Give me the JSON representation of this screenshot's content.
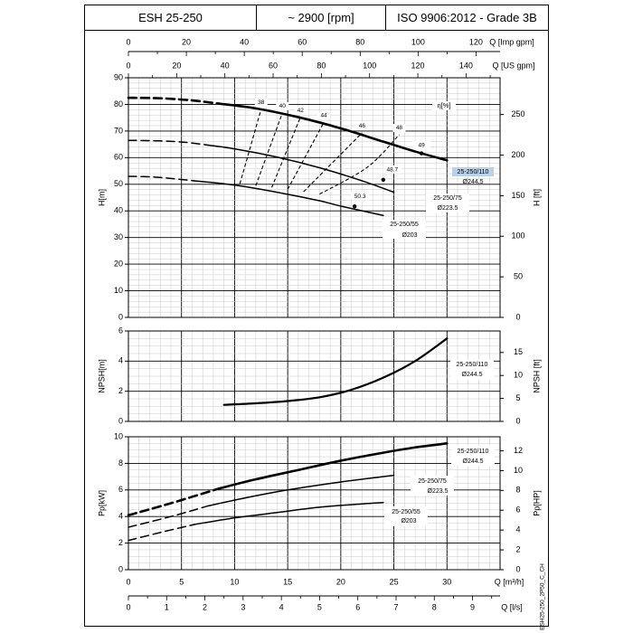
{
  "header": {
    "model": "ESH 25-250",
    "speed": "~ 2900 [rpm]",
    "standard": "ISO 9906:2012 - Grade 3B"
  },
  "footer_code": "ESH25-250_2P50_C_CH",
  "colors": {
    "line": "#000000",
    "grid": "#c8c8c8",
    "highlight": "#b7d2ea"
  },
  "chart_data": [
    {
      "type": "line",
      "panel": "head",
      "x_axis_main": {
        "label": "Q [m³/h]",
        "range": [
          0,
          35
        ]
      },
      "x_axis_top_imp": {
        "label": "Q [Imp gpm]",
        "range": [
          0,
          128.3
        ],
        "ticks": [
          0,
          20,
          40,
          60,
          80,
          100,
          120
        ],
        "tick_labels": [
          "0",
          "20",
          "40",
          "60",
          "80",
          "100",
          "120"
        ]
      },
      "x_axis_top_us": {
        "label": "Q [US gpm]",
        "range": [
          0,
          154.1
        ],
        "ticks": [
          0,
          20,
          40,
          60,
          80,
          100,
          120,
          140
        ],
        "tick_labels": [
          "0",
          "20",
          "40",
          "60",
          "80",
          "100",
          "120",
          "140"
        ]
      },
      "y_left": {
        "label": "H[m]",
        "range": [
          0,
          90
        ],
        "ticks": [
          0,
          10,
          20,
          30,
          40,
          50,
          60,
          70,
          80,
          90
        ],
        "tick_labels": [
          "0",
          "10",
          "20",
          "30",
          "40",
          "50",
          "60",
          "70",
          "80",
          "90"
        ]
      },
      "y_right": {
        "label": "H [ft]",
        "range": [
          0,
          295.3
        ],
        "ticks": [
          0,
          50,
          100,
          150,
          200,
          250
        ],
        "tick_labels": [
          "0",
          "50",
          "100",
          "150",
          "200",
          "250"
        ]
      },
      "series": [
        {
          "name": "25-250/110",
          "diameter": "Ø244.5",
          "highlight": true,
          "dashed": [
            [
              0,
              82.5
            ],
            [
              3,
              82.3
            ],
            [
              6,
              81.5
            ],
            [
              8.5,
              80.3
            ]
          ],
          "solid": [
            [
              8.5,
              80.3
            ],
            [
              12,
              78.5
            ],
            [
              16,
              75.2
            ],
            [
              20,
              71
            ],
            [
              24,
              66
            ],
            [
              27,
              62.3
            ],
            [
              30,
              59
            ]
          ]
        },
        {
          "name": "25-250/75",
          "diameter": "Ø223.5",
          "dashed": [
            [
              0,
              66.5
            ],
            [
              3,
              66.3
            ],
            [
              5.5,
              65.7
            ],
            [
              7.5,
              64.7
            ]
          ],
          "solid": [
            [
              7.5,
              64.7
            ],
            [
              10,
              63.3
            ],
            [
              14,
              60.2
            ],
            [
              18,
              56.2
            ],
            [
              22,
              51.3
            ],
            [
              25,
              47
            ]
          ]
        },
        {
          "name": "25-250/55",
          "diameter": "Ø203",
          "dashed": [
            [
              0,
              53
            ],
            [
              2.5,
              52.7
            ],
            [
              5,
              51.8
            ],
            [
              6.2,
              51.3
            ]
          ],
          "solid": [
            [
              6.2,
              51.3
            ],
            [
              10,
              49.7
            ],
            [
              14,
              47
            ],
            [
              18,
              43.8
            ],
            [
              20,
              41.8
            ],
            [
              24,
              38.3
            ]
          ]
        }
      ],
      "efficiency_label": "η[%]",
      "efficiency_curves": [
        {
          "value": "38",
          "points": [
            [
              10.5,
              50.2
            ],
            [
              12.5,
              78.2
            ]
          ]
        },
        {
          "value": "40",
          "points": [
            [
              12,
              49.5
            ],
            [
              14.5,
              76.8
            ]
          ]
        },
        {
          "value": "42",
          "points": [
            [
              13.5,
              48.8
            ],
            [
              16.2,
              75.2
            ]
          ]
        },
        {
          "value": "44",
          "points": [
            [
              15,
              48.1
            ],
            [
              18.4,
              73.2
            ]
          ]
        },
        {
          "value": "46",
          "points": [
            [
              16.5,
              47.2
            ],
            [
              22,
              69.3
            ]
          ]
        },
        {
          "value": "48",
          "points": [
            [
              18,
              46.3
            ],
            [
              22.5,
              56.4
            ],
            [
              25.5,
              68.6
            ]
          ]
        }
      ],
      "efficiency_points": [
        {
          "value": "49",
          "q": 27.6,
          "h": 61.6
        },
        {
          "value": "48.7",
          "q": 24,
          "h": 51.7
        },
        {
          "value": "50.3",
          "q": 21.3,
          "h": 41.7
        }
      ]
    },
    {
      "type": "line",
      "panel": "npsh",
      "y_left": {
        "label": "NPSH[m]",
        "range": [
          0,
          6
        ],
        "ticks": [
          0,
          2,
          4,
          6
        ],
        "tick_labels": [
          "0",
          "2",
          "4",
          "6"
        ]
      },
      "y_right": {
        "label": "NPSH [ft]",
        "range": [
          0,
          19.69
        ],
        "ticks": [
          0,
          5,
          10,
          15
        ],
        "tick_labels": [
          "0",
          "5",
          "10",
          "15"
        ]
      },
      "series": [
        {
          "name": "25-250/110",
          "diameter": "Ø244.5",
          "solid": [
            [
              9,
              1.1
            ],
            [
              12,
              1.2
            ],
            [
              15,
              1.35
            ],
            [
              18,
              1.6
            ],
            [
              21,
              2.1
            ],
            [
              24,
              2.9
            ],
            [
              27,
              4
            ],
            [
              30,
              5.5
            ]
          ]
        }
      ]
    },
    {
      "type": "line",
      "panel": "power",
      "x_axis_main": {
        "label": "Q [m³/h]",
        "range": [
          0,
          35
        ],
        "ticks": [
          0,
          5,
          10,
          15,
          20,
          25,
          30
        ],
        "tick_labels": [
          "0",
          "5",
          "10",
          "15",
          "20",
          "25",
          "30"
        ]
      },
      "x_axis_ls": {
        "label": "Q [l/s]",
        "range": [
          0,
          9.72
        ],
        "ticks": [
          0,
          1,
          2,
          3,
          4,
          5,
          6,
          7,
          8,
          9
        ],
        "tick_labels": [
          "0",
          "1",
          "2",
          "3",
          "4",
          "5",
          "6",
          "7",
          "8",
          "9"
        ]
      },
      "y_left": {
        "label": "Pp[kW]",
        "range": [
          0,
          10
        ],
        "ticks": [
          0,
          2,
          4,
          6,
          8,
          10
        ],
        "tick_labels": [
          "0",
          "2",
          "4",
          "6",
          "8",
          "10"
        ]
      },
      "y_right": {
        "label": "Pp[HP]",
        "range": [
          0,
          13.41
        ],
        "ticks": [
          0,
          2,
          4,
          6,
          8,
          10,
          12
        ],
        "tick_labels": [
          "0",
          "2",
          "4",
          "6",
          "8",
          "10",
          "12"
        ]
      },
      "series": [
        {
          "name": "25-250/110",
          "diameter": "Ø244.5",
          "dashed": [
            [
              0,
              4.1
            ],
            [
              4,
              5
            ],
            [
              8.5,
              6.1
            ]
          ],
          "solid": [
            [
              8.5,
              6.1
            ],
            [
              12,
              6.8
            ],
            [
              16,
              7.5
            ],
            [
              20,
              8.2
            ],
            [
              24,
              8.8
            ],
            [
              27,
              9.2
            ],
            [
              30,
              9.5
            ]
          ]
        },
        {
          "name": "25-250/75",
          "diameter": "Ø223.5",
          "dashed": [
            [
              0,
              3.2
            ],
            [
              4,
              4
            ],
            [
              7.5,
              4.8
            ]
          ],
          "solid": [
            [
              7.5,
              4.8
            ],
            [
              11,
              5.4
            ],
            [
              15,
              6
            ],
            [
              20,
              6.6
            ],
            [
              25,
              7.1
            ]
          ]
        },
        {
          "name": "25-250/55",
          "diameter": "Ø203",
          "dashed": [
            [
              0,
              2.2
            ],
            [
              3,
              2.8
            ],
            [
              6.2,
              3.4
            ]
          ],
          "solid": [
            [
              6.2,
              3.4
            ],
            [
              10,
              3.9
            ],
            [
              14,
              4.3
            ],
            [
              18,
              4.7
            ],
            [
              22,
              4.95
            ],
            [
              24,
              5.05
            ]
          ]
        }
      ]
    }
  ]
}
